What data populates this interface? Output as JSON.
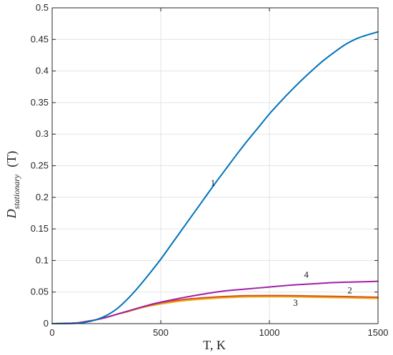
{
  "chart_data": {
    "type": "line",
    "xlabel": "T, K",
    "ylabel": {
      "main": "D",
      "subscript": "stationary",
      "suffix": "(T)"
    },
    "xlim": [
      0,
      1500
    ],
    "ylim": [
      0,
      0.5
    ],
    "x_ticks": [
      0,
      500,
      1000,
      1500
    ],
    "y_ticks": [
      0,
      0.05,
      0.1,
      0.15,
      0.2,
      0.25,
      0.3,
      0.35,
      0.4,
      0.45,
      0.5
    ],
    "x_tick_labels": [
      "0",
      "500",
      "1000",
      "1500"
    ],
    "y_tick_labels": [
      "0",
      "0.05",
      "0.1",
      "0.15",
      "0.2",
      "0.25",
      "0.3",
      "0.35",
      "0.4",
      "0.45",
      "0.5"
    ],
    "grid": true,
    "series": [
      {
        "label": "1",
        "color": "#0072BD",
        "x": [
          0,
          100,
          150,
          200,
          250,
          300,
          350,
          400,
          450,
          500,
          550,
          600,
          650,
          700,
          750,
          800,
          850,
          900,
          950,
          1000,
          1050,
          1100,
          1150,
          1200,
          1250,
          1300,
          1350,
          1400,
          1450,
          1500
        ],
        "y": [
          0,
          0.0003,
          0.002,
          0.006,
          0.013,
          0.024,
          0.04,
          0.059,
          0.08,
          0.102,
          0.126,
          0.15,
          0.174,
          0.198,
          0.222,
          0.245,
          0.268,
          0.29,
          0.311,
          0.332,
          0.351,
          0.369,
          0.386,
          0.402,
          0.417,
          0.43,
          0.442,
          0.451,
          0.457,
          0.462
        ]
      },
      {
        "label": "2",
        "color": "#D95319",
        "x": [
          0,
          100,
          150,
          200,
          250,
          300,
          350,
          400,
          450,
          500,
          600,
          700,
          800,
          900,
          1000,
          1100,
          1200,
          1300,
          1400,
          1500
        ],
        "y": [
          0,
          0.0008,
          0.003,
          0.006,
          0.01,
          0.015,
          0.02,
          0.025,
          0.029,
          0.033,
          0.038,
          0.041,
          0.043,
          0.0443,
          0.0445,
          0.0443,
          0.0438,
          0.0432,
          0.0425,
          0.0418
        ]
      },
      {
        "label": "3",
        "color": "#EDB120",
        "x": [
          0,
          100,
          150,
          200,
          250,
          300,
          350,
          400,
          450,
          500,
          600,
          700,
          800,
          900,
          1000,
          1100,
          1200,
          1300,
          1400,
          1500
        ],
        "y": [
          0,
          0.0008,
          0.003,
          0.006,
          0.01,
          0.015,
          0.019,
          0.024,
          0.028,
          0.031,
          0.036,
          0.039,
          0.041,
          0.0423,
          0.0425,
          0.0423,
          0.0418,
          0.0412,
          0.0405,
          0.0398
        ]
      },
      {
        "label": "4",
        "color": "#A020A8",
        "x": [
          0,
          100,
          150,
          200,
          250,
          300,
          350,
          400,
          450,
          500,
          600,
          700,
          800,
          900,
          1000,
          1100,
          1200,
          1300,
          1400,
          1500
        ],
        "y": [
          0,
          0.0008,
          0.003,
          0.006,
          0.01,
          0.015,
          0.02,
          0.025,
          0.03,
          0.034,
          0.041,
          0.047,
          0.052,
          0.055,
          0.058,
          0.061,
          0.063,
          0.065,
          0.066,
          0.067
        ]
      }
    ],
    "curve_labels": [
      {
        "text": "1",
        "x": 740,
        "y": 0.218
      },
      {
        "text": "2",
        "x": 1370,
        "y": 0.048
      },
      {
        "text": "3",
        "x": 1120,
        "y": 0.028
      },
      {
        "text": "4",
        "x": 1170,
        "y": 0.073
      }
    ]
  }
}
